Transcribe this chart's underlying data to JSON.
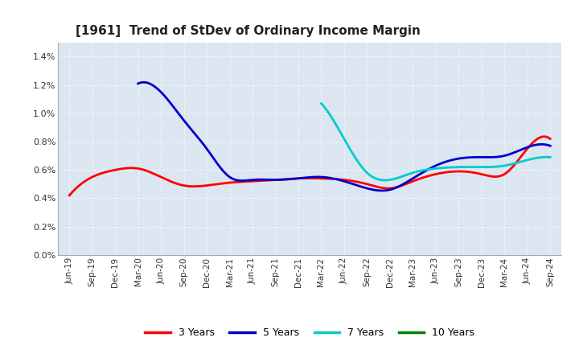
{
  "title": "[1961]  Trend of StDev of Ordinary Income Margin",
  "background_color": "#ffffff",
  "plot_background_color": "#dce6f0",
  "grid_color": "#ffffff",
  "ylim": [
    0.0,
    0.015
  ],
  "yticks": [
    0.0,
    0.002,
    0.004,
    0.006,
    0.008,
    0.01,
    0.012,
    0.014
  ],
  "ytick_labels": [
    "0.0%",
    "0.2%",
    "0.4%",
    "0.6%",
    "0.8%",
    "1.0%",
    "1.2%",
    "1.4%"
  ],
  "xtick_labels": [
    "Jun-19",
    "Sep-19",
    "Dec-19",
    "Mar-20",
    "Jun-20",
    "Sep-20",
    "Dec-20",
    "Mar-21",
    "Jun-21",
    "Sep-21",
    "Dec-21",
    "Mar-22",
    "Jun-22",
    "Sep-22",
    "Dec-22",
    "Mar-23",
    "Jun-23",
    "Sep-23",
    "Dec-23",
    "Mar-24",
    "Jun-24",
    "Sep-24"
  ],
  "series": {
    "3years": {
      "color": "#ff0000",
      "label": "3 Years",
      "xi": [
        0,
        1,
        2,
        3,
        4,
        5,
        6,
        7,
        8,
        9,
        10,
        11,
        12,
        13,
        14,
        15,
        16,
        17,
        18,
        19,
        20,
        21
      ],
      "values": [
        0.0042,
        0.0055,
        0.006,
        0.0061,
        0.0055,
        0.0049,
        0.0049,
        0.0051,
        0.0052,
        0.0053,
        0.0054,
        0.0054,
        0.0053,
        0.005,
        0.0047,
        0.0052,
        0.0057,
        0.0059,
        0.0057,
        0.0057,
        0.0075,
        0.0082
      ]
    },
    "5years": {
      "color": "#0000cc",
      "label": "5 Years",
      "xi": [
        3,
        4,
        5,
        6,
        7,
        8,
        9,
        10,
        11,
        12,
        13,
        14,
        15,
        16,
        17,
        18,
        19,
        20,
        21
      ],
      "values": [
        0.0121,
        0.0115,
        0.0095,
        0.0075,
        0.0055,
        0.0053,
        0.0053,
        0.0054,
        0.0055,
        0.0052,
        0.0047,
        0.0046,
        0.0054,
        0.0063,
        0.0068,
        0.0069,
        0.007,
        0.0076,
        0.0077
      ]
    },
    "7years": {
      "color": "#00cccc",
      "label": "7 Years",
      "xi": [
        11,
        12,
        13,
        14,
        15,
        16,
        17,
        18,
        19,
        20,
        21
      ],
      "values": [
        0.0107,
        0.0082,
        0.0058,
        0.0053,
        0.0058,
        0.0061,
        0.0062,
        0.0062,
        0.0063,
        0.0067,
        0.0069
      ]
    },
    "10years": {
      "color": "#008000",
      "label": "10 Years",
      "xi": [],
      "values": []
    }
  },
  "legend_entries": [
    "3 Years",
    "5 Years",
    "7 Years",
    "10 Years"
  ],
  "legend_colors": [
    "#ff0000",
    "#0000cc",
    "#00cccc",
    "#008000"
  ]
}
